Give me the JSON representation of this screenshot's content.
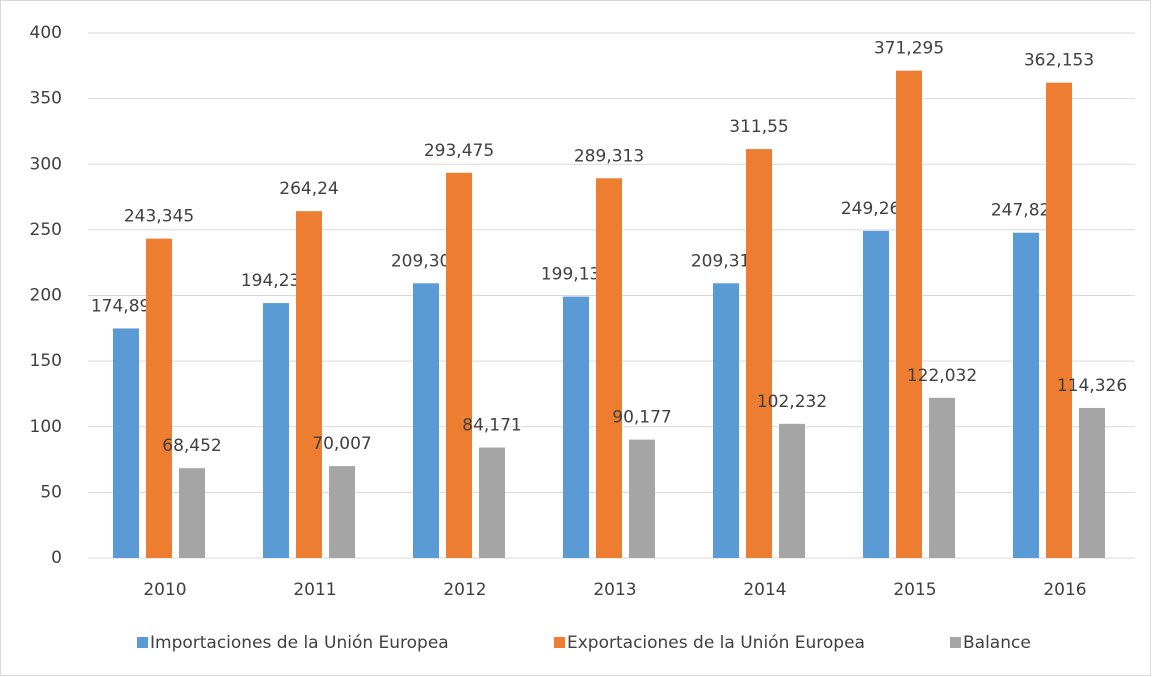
{
  "chart_data": {
    "type": "bar",
    "categories": [
      "2010",
      "2011",
      "2012",
      "2013",
      "2014",
      "2015",
      "2016"
    ],
    "series": [
      {
        "name": "Importaciones de la Unión Europea",
        "color": "#5b9bd5",
        "values": [
          174.893,
          194.233,
          209.304,
          199.137,
          209.318,
          249.263,
          247.826
        ],
        "value_labels": [
          "174,893",
          "194,233",
          "209,304",
          "199,137",
          "209,318",
          "249,263",
          "247,826"
        ]
      },
      {
        "name": "Exportaciones de la Unión Europea",
        "color": "#ed7d31",
        "values": [
          243.345,
          264.24,
          293.475,
          289.313,
          311.55,
          371.295,
          362.153
        ],
        "value_labels": [
          "243,345",
          "264,24",
          "293,475",
          "289,313",
          "311,55",
          "371,295",
          "362,153"
        ]
      },
      {
        "name": "Balance",
        "color": "#a5a5a5",
        "values": [
          68.452,
          70.007,
          84.171,
          90.177,
          102.232,
          122.032,
          114.326
        ],
        "value_labels": [
          "68,452",
          "70,007",
          "84,171",
          "90,177",
          "102,232",
          "122,032",
          "114,326"
        ]
      }
    ],
    "ylim": [
      0,
      400
    ],
    "yticks": [
      0,
      50,
      100,
      150,
      200,
      250,
      300,
      350,
      400
    ],
    "grid": true,
    "legend": "bottom"
  }
}
